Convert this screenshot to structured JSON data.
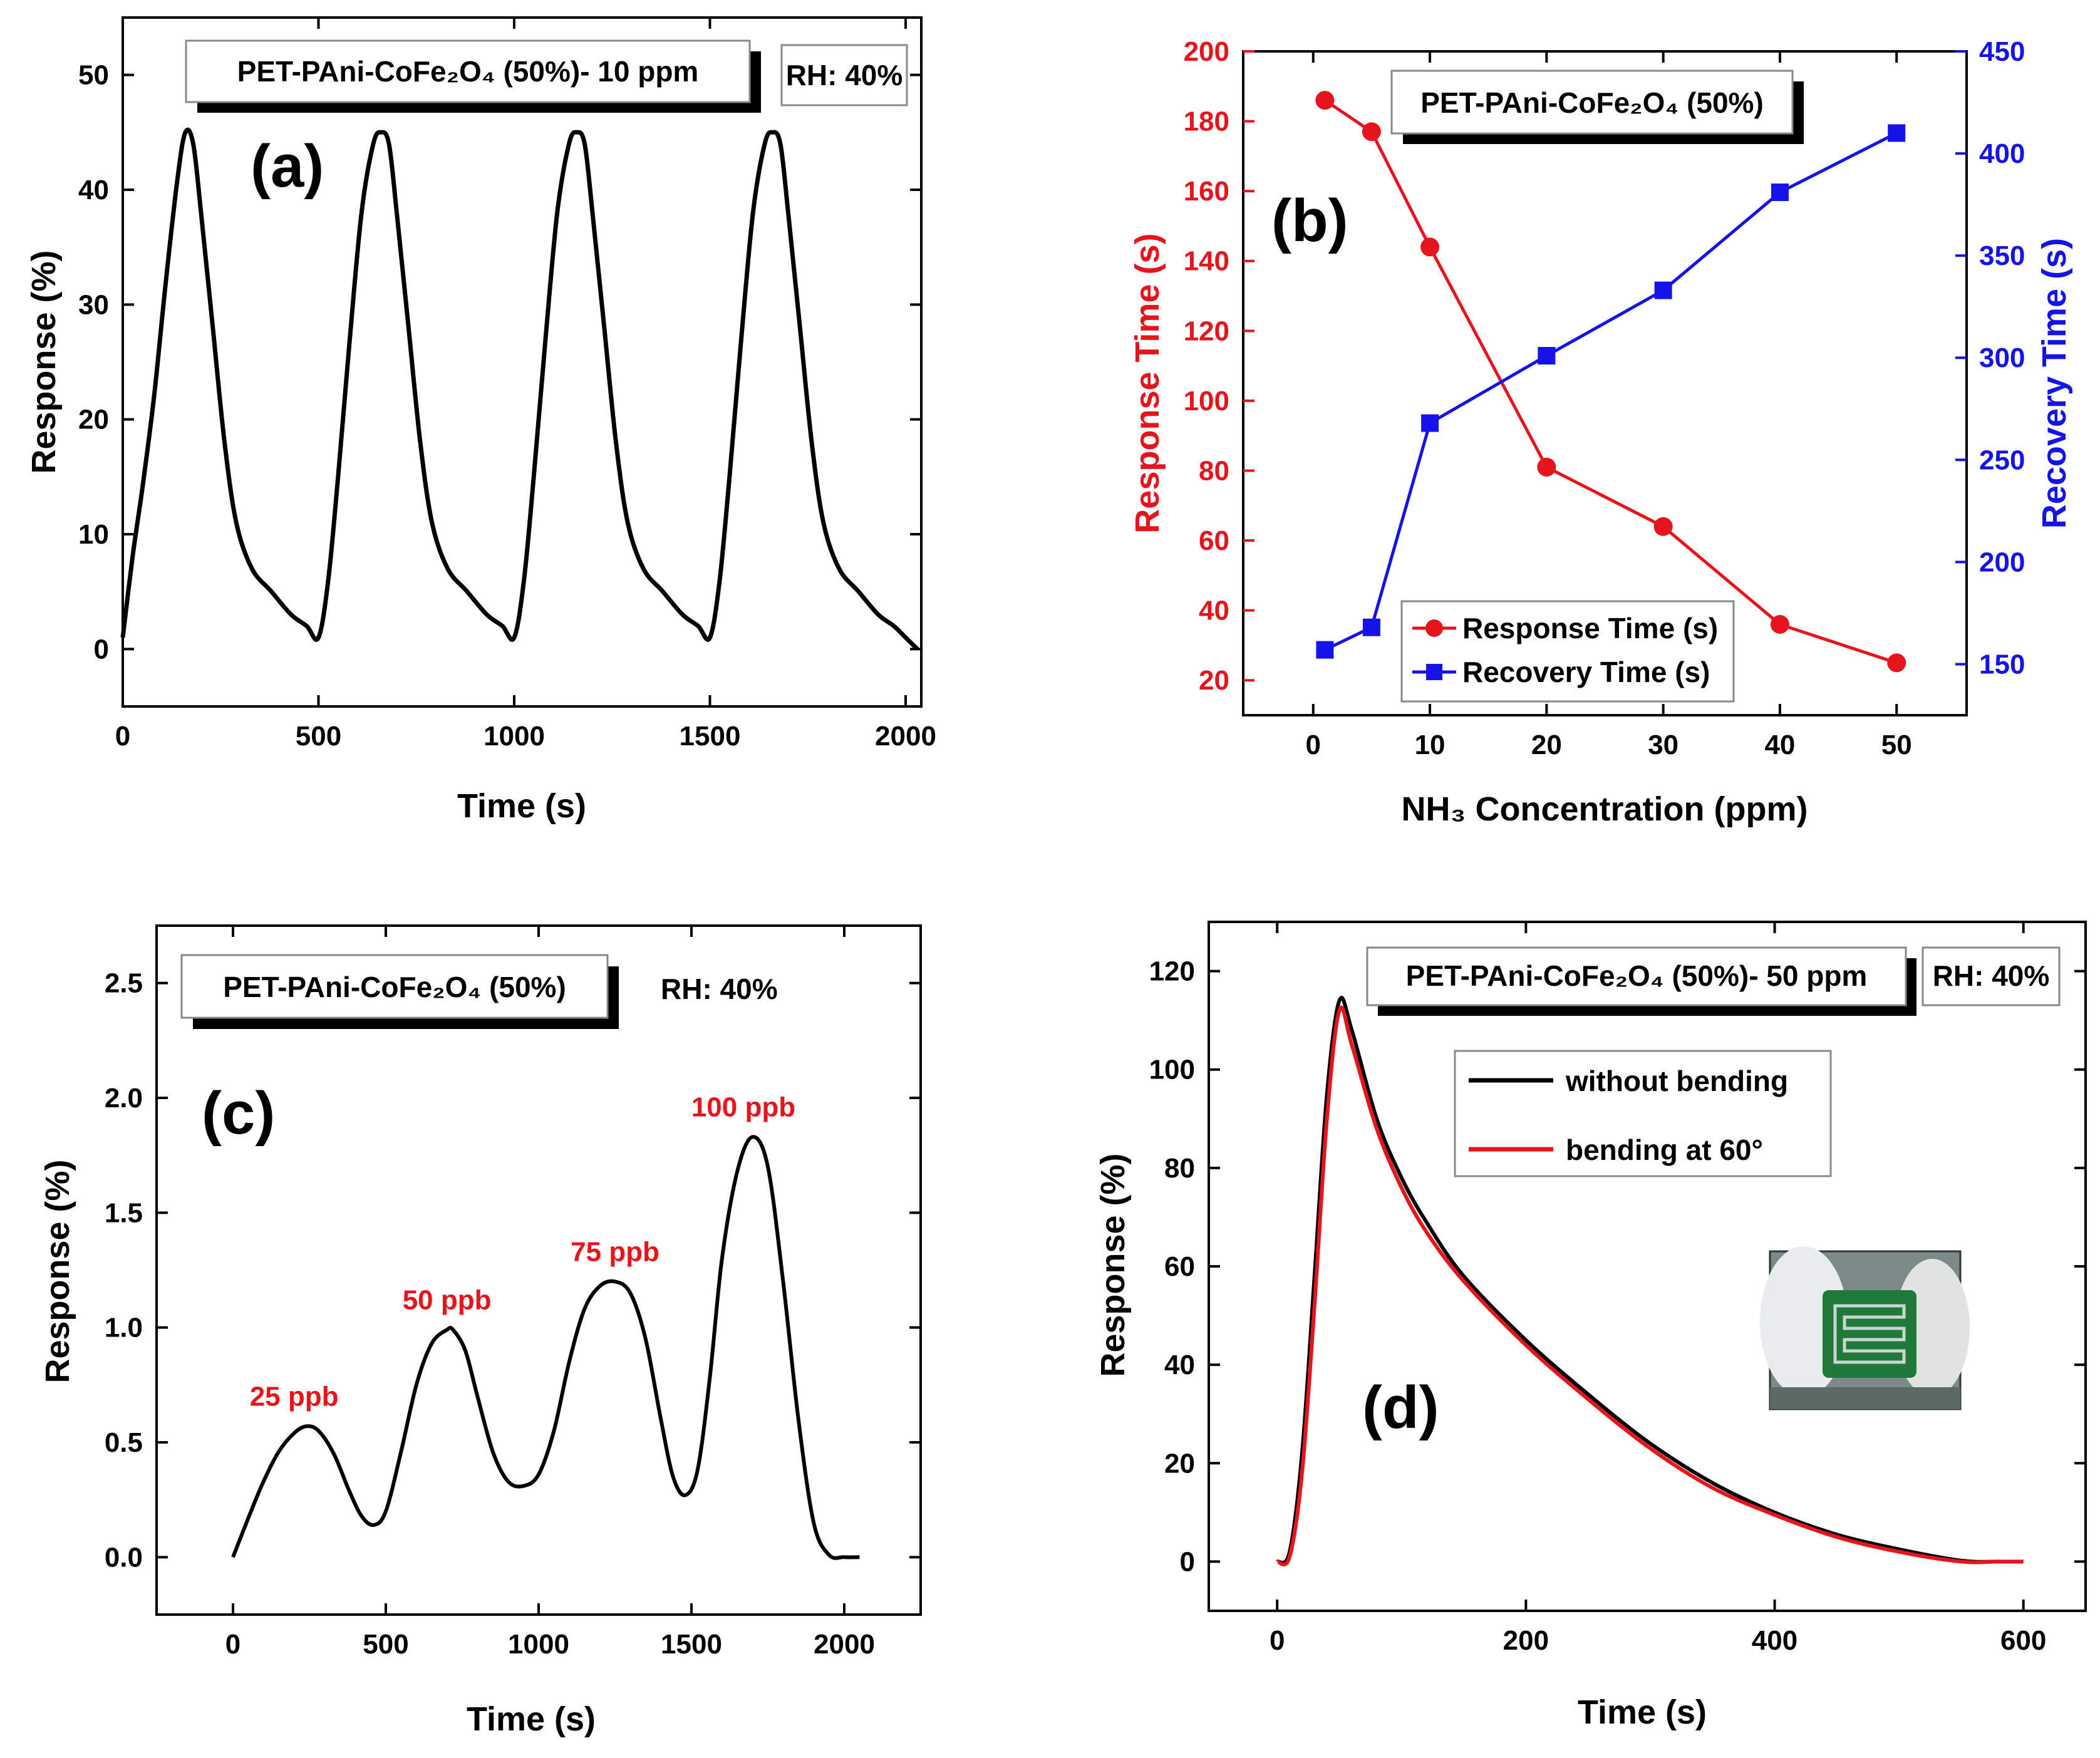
{
  "chart_data": [
    {
      "id": "a",
      "type": "line",
      "panel_label": "(a)",
      "title": "",
      "xlabel": "Time (s)",
      "ylabel": "Response (%)",
      "xlim": [
        0,
        2040
      ],
      "ylim": [
        -5,
        55
      ],
      "xticks": [
        0,
        500,
        1000,
        1500,
        2000
      ],
      "yticks": [
        0,
        10,
        20,
        30,
        40,
        50
      ],
      "grid": false,
      "boxes": [
        {
          "text": "PET-PAni-CoFe₂O₄ (50%)- 10 ppm",
          "kind": "material-label"
        },
        {
          "text": "RH: 40%",
          "kind": "condition-label"
        }
      ],
      "series": [
        {
          "color": "#000000",
          "x": [
            0,
            25,
            50,
            80,
            110,
            140,
            160,
            180,
            200,
            230,
            260,
            290,
            330,
            380,
            430,
            470,
            500,
            525,
            550,
            580,
            610,
            640,
            660,
            680,
            700,
            730,
            760,
            790,
            830,
            880,
            930,
            970,
            1000,
            1025,
            1050,
            1080,
            1110,
            1140,
            1160,
            1180,
            1200,
            1230,
            1260,
            1290,
            1330,
            1380,
            1430,
            1470,
            1500,
            1525,
            1550,
            1580,
            1610,
            1640,
            1660,
            1680,
            1700,
            1730,
            1760,
            1790,
            1830,
            1880,
            1930,
            1970,
            2000,
            2030
          ],
          "y": [
            1,
            8,
            14,
            22,
            32,
            41,
            45,
            44,
            38,
            28,
            18,
            11,
            7,
            5,
            3,
            2,
            1,
            6,
            15,
            27,
            38,
            44,
            45,
            44,
            38,
            28,
            18,
            11,
            7,
            5,
            3,
            2,
            1,
            6,
            15,
            27,
            38,
            44,
            45,
            44,
            38,
            28,
            18,
            11,
            7,
            5,
            3,
            2,
            1,
            6,
            15,
            27,
            38,
            44,
            45,
            44,
            38,
            28,
            18,
            11,
            7,
            5,
            3,
            2,
            1,
            0
          ]
        }
      ]
    },
    {
      "id": "b",
      "type": "line",
      "panel_label": "(b)",
      "title": "",
      "xlabel": "NH₃ Concentration (ppm)",
      "ylabel": "Response Time (s)",
      "y2label": "Recovery Time (s)",
      "xlim": [
        -6,
        56
      ],
      "ylim": [
        10,
        200
      ],
      "y2lim": [
        125,
        450
      ],
      "xticks": [
        0,
        10,
        20,
        30,
        40,
        50
      ],
      "yticks": [
        20,
        40,
        60,
        80,
        100,
        120,
        140,
        160,
        180,
        200
      ],
      "y2ticks": [
        150,
        200,
        250,
        300,
        350,
        400,
        450
      ],
      "grid": false,
      "legend_position": "bottom-center",
      "boxes": [
        {
          "text": "PET-PAni-CoFe₂O₄ (50%)",
          "kind": "material-label"
        }
      ],
      "series": [
        {
          "name": "Response Time (s)",
          "axis": "left",
          "color": "#e8141b",
          "marker": "circle",
          "x": [
            1,
            5,
            10,
            20,
            30,
            40,
            50
          ],
          "y": [
            186,
            177,
            144,
            81,
            64,
            36,
            25
          ]
        },
        {
          "name": "Recovery Time (s)",
          "axis": "right",
          "color": "#1414e8",
          "marker": "square",
          "x": [
            1,
            5,
            10,
            20,
            30,
            40,
            50
          ],
          "y": [
            157,
            168,
            268,
            301,
            333,
            381,
            410
          ]
        }
      ]
    },
    {
      "id": "c",
      "type": "line",
      "panel_label": "(c)",
      "title": "",
      "xlabel": "Time (s)",
      "ylabel": "Response (%)",
      "xlim": [
        -250,
        2250
      ],
      "ylim": [
        -0.25,
        2.75
      ],
      "xticks": [
        0,
        500,
        1000,
        1500,
        2000
      ],
      "yticks": [
        0.0,
        0.5,
        1.0,
        1.5,
        2.0,
        2.5
      ],
      "grid": false,
      "boxes": [
        {
          "text": "PET-PAni-CoFe₂O₄ (50%)",
          "kind": "material-label"
        }
      ],
      "free_text": [
        {
          "text": "RH: 40%"
        }
      ],
      "annotations": [
        {
          "text": "25 ppb",
          "x": 200,
          "y": 0.66
        },
        {
          "text": "50 ppb",
          "x": 700,
          "y": 1.08
        },
        {
          "text": "75 ppb",
          "x": 1250,
          "y": 1.29
        },
        {
          "text": "100 ppb",
          "x": 1670,
          "y": 1.92
        }
      ],
      "series": [
        {
          "color": "#000000",
          "x": [
            0,
            50,
            100,
            150,
            200,
            240,
            280,
            330,
            380,
            420,
            460,
            500,
            550,
            600,
            650,
            700,
            720,
            760,
            800,
            850,
            900,
            950,
            1000,
            1050,
            1100,
            1150,
            1200,
            1250,
            1300,
            1350,
            1400,
            1440,
            1480,
            1520,
            1560,
            1600,
            1650,
            1700,
            1750,
            1800,
            1850,
            1900,
            1950,
            2000,
            2050
          ],
          "y": [
            0.0,
            0.17,
            0.33,
            0.46,
            0.54,
            0.57,
            0.55,
            0.45,
            0.29,
            0.18,
            0.14,
            0.2,
            0.46,
            0.75,
            0.93,
            0.99,
            0.99,
            0.9,
            0.7,
            0.46,
            0.33,
            0.31,
            0.36,
            0.55,
            0.85,
            1.08,
            1.18,
            1.2,
            1.15,
            0.95,
            0.6,
            0.35,
            0.27,
            0.38,
            0.78,
            1.3,
            1.68,
            1.83,
            1.7,
            1.2,
            0.6,
            0.15,
            0.01,
            0.0,
            0.0
          ]
        }
      ]
    },
    {
      "id": "d",
      "type": "line",
      "panel_label": "(d)",
      "title": "",
      "xlabel": "Time (s)",
      "ylabel": "Response (%)",
      "xlim": [
        -55,
        650
      ],
      "ylim": [
        -10,
        130
      ],
      "xticks": [
        0,
        200,
        400,
        600
      ],
      "yticks": [
        0,
        20,
        40,
        60,
        80,
        100,
        120
      ],
      "grid": false,
      "legend_position": "top-right",
      "boxes": [
        {
          "text": "PET-PAni-CoFe₂O₄ (50%)- 50 ppm",
          "kind": "material-label"
        },
        {
          "text": "RH: 40%",
          "kind": "condition-label"
        }
      ],
      "series": [
        {
          "name": "without bending",
          "color": "#000000",
          "x": [
            0,
            10,
            20,
            30,
            40,
            50,
            60,
            80,
            100,
            120,
            150,
            200,
            250,
            300,
            350,
            400,
            450,
            500,
            550,
            580,
            600
          ],
          "y": [
            0,
            2,
            22,
            58,
            95,
            114,
            108,
            90,
            78,
            69,
            58,
            45,
            34,
            24,
            16,
            10,
            5.5,
            2.5,
            0.2,
            0,
            0
          ]
        },
        {
          "name": "bending at 60°",
          "color": "#e8141b",
          "x": [
            0,
            10,
            20,
            30,
            40,
            50,
            60,
            80,
            100,
            120,
            150,
            200,
            250,
            300,
            350,
            400,
            450,
            500,
            550,
            580,
            600
          ],
          "y": [
            0,
            1,
            18,
            52,
            90,
            112,
            105,
            88,
            76,
            67,
            57,
            44,
            33,
            23,
            15,
            9.5,
            5,
            2,
            0,
            0,
            0
          ]
        }
      ]
    }
  ]
}
